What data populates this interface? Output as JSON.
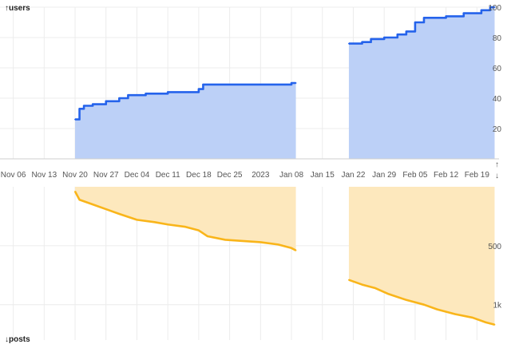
{
  "chart_data": [
    {
      "type": "area",
      "ylabel": "↑users",
      "ylim": [
        0,
        100
      ],
      "yticks": [
        "20",
        "40",
        "60",
        "80",
        "100"
      ],
      "x_tick_labels": [
        "Nov 06",
        "Nov 13",
        "Nov 20",
        "Nov 27",
        "Dec 04",
        "Dec 11",
        "Dec 18",
        "Dec 25",
        "2023",
        "Jan 08",
        "Jan 15",
        "Jan 22",
        "Jan 29",
        "Feb 05",
        "Feb 12",
        "Feb 19"
      ],
      "grid": true,
      "color": "#2563eb",
      "fill": "#bcd0f7",
      "series": [
        {
          "segments": [
            [
              [
                "2022-11-20",
                26
              ],
              [
                "2022-11-21",
                33
              ],
              [
                "2022-11-22",
                35
              ],
              [
                "2022-11-24",
                36
              ],
              [
                "2022-11-27",
                38
              ],
              [
                "2022-11-30",
                40
              ],
              [
                "2022-12-02",
                42
              ],
              [
                "2022-12-06",
                43
              ],
              [
                "2022-12-11",
                44
              ],
              [
                "2022-12-16",
                44
              ],
              [
                "2022-12-18",
                46
              ],
              [
                "2022-12-19",
                49
              ],
              [
                "2022-12-25",
                49
              ],
              [
                "2023-01-01",
                49
              ],
              [
                "2023-01-07",
                49
              ],
              [
                "2023-01-08",
                50
              ],
              [
                "2023-01-09",
                50
              ]
            ],
            [
              [
                "2023-01-21",
                76
              ],
              [
                "2023-01-24",
                77
              ],
              [
                "2023-01-26",
                79
              ],
              [
                "2023-01-29",
                80
              ],
              [
                "2023-02-01",
                82
              ],
              [
                "2023-02-03",
                84
              ],
              [
                "2023-02-05",
                90
              ],
              [
                "2023-02-07",
                93
              ],
              [
                "2023-02-12",
                94
              ],
              [
                "2023-02-16",
                96
              ],
              [
                "2023-02-20",
                98
              ],
              [
                "2023-02-22",
                100
              ],
              [
                "2023-02-23",
                100
              ]
            ]
          ]
        }
      ]
    },
    {
      "type": "area",
      "ylabel": "↓posts",
      "y_inverted": true,
      "ylim": [
        0,
        1300
      ],
      "yticks": [
        "500",
        "1k"
      ],
      "grid": true,
      "color": "#f9b51a",
      "fill": "#fde8bd",
      "series": [
        {
          "segments": [
            [
              [
                "2022-11-20",
                40
              ],
              [
                "2022-11-21",
                110
              ],
              [
                "2022-11-24",
                150
              ],
              [
                "2022-11-27",
                190
              ],
              [
                "2022-11-30",
                230
              ],
              [
                "2022-12-04",
                280
              ],
              [
                "2022-12-08",
                300
              ],
              [
                "2022-12-11",
                320
              ],
              [
                "2022-12-15",
                340
              ],
              [
                "2022-12-18",
                370
              ],
              [
                "2022-12-20",
                420
              ],
              [
                "2022-12-24",
                450
              ],
              [
                "2022-12-28",
                460
              ],
              [
                "2023-01-01",
                470
              ],
              [
                "2023-01-05",
                490
              ],
              [
                "2023-01-08",
                520
              ],
              [
                "2023-01-09",
                540
              ]
            ],
            [
              [
                "2023-01-21",
                790
              ],
              [
                "2023-01-24",
                830
              ],
              [
                "2023-01-27",
                860
              ],
              [
                "2023-01-30",
                910
              ],
              [
                "2023-02-03",
                960
              ],
              [
                "2023-02-07",
                1000
              ],
              [
                "2023-02-10",
                1040
              ],
              [
                "2023-02-14",
                1080
              ],
              [
                "2023-02-18",
                1110
              ],
              [
                "2023-02-21",
                1150
              ],
              [
                "2023-02-23",
                1170
              ]
            ]
          ]
        }
      ]
    }
  ]
}
